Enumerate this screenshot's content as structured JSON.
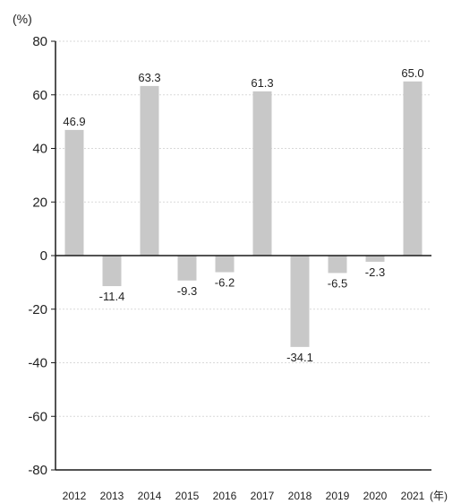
{
  "chart_data": {
    "type": "bar",
    "categories": [
      "2012",
      "2013",
      "2014",
      "2015",
      "2016",
      "2017",
      "2018",
      "2019",
      "2020",
      "2021"
    ],
    "values": [
      46.9,
      -11.4,
      63.3,
      -9.3,
      -6.2,
      61.3,
      -34.1,
      -6.5,
      -2.3,
      65.0
    ],
    "data_labels": [
      "46.9",
      "-11.4",
      "63.3",
      "-9.3",
      "-6.2",
      "61.3",
      "-34.1",
      "-6.5",
      "-2.3",
      "65.0"
    ],
    "y_ticks": [
      80,
      60,
      40,
      20,
      0,
      -20,
      -40,
      -60,
      -80
    ],
    "ylim": [
      -80,
      80
    ],
    "ylabel": "(%)",
    "xlabel": "(年)",
    "grid": true,
    "colors": {
      "bar": "#c8c8c8",
      "grid": "#d9d9d9",
      "axis": "#1a1a1a",
      "text": "#222222"
    }
  }
}
